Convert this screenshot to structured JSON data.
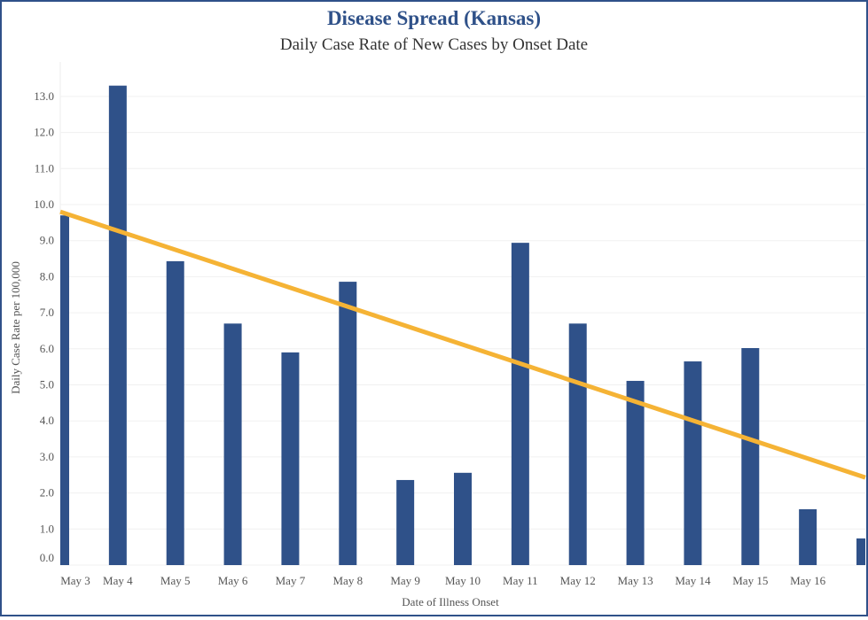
{
  "chart_data": {
    "type": "bar",
    "title": "Disease Spread (Kansas)",
    "subtitle": "Daily Case Rate of New Cases by Onset Date",
    "xlabel": "Date of Illness Onset",
    "ylabel": "Daily Case Rate per 100,000",
    "ylim": [
      0,
      13.7
    ],
    "yticks": [
      "0.0",
      "1.0",
      "2.0",
      "3.0",
      "4.0",
      "5.0",
      "6.0",
      "7.0",
      "8.0",
      "9.0",
      "10.0",
      "11.0",
      "12.0",
      "13.0"
    ],
    "categories": [
      "May 3",
      "May 4",
      "May 5",
      "May 6",
      "May 7",
      "May 8",
      "May 9",
      "May 10",
      "May 11",
      "May 12",
      "May 13",
      "May 14",
      "May 15",
      "May 16",
      ""
    ],
    "values": [
      9.7,
      13.3,
      8.43,
      6.7,
      5.9,
      7.86,
      2.36,
      2.56,
      8.94,
      6.7,
      5.11,
      5.65,
      6.02,
      1.55,
      0.74
    ],
    "trendline": {
      "start": 9.8,
      "end": 2.43,
      "color": "#f5b335"
    },
    "bar_color": "#2f5189",
    "grid": true,
    "legend": "none"
  }
}
